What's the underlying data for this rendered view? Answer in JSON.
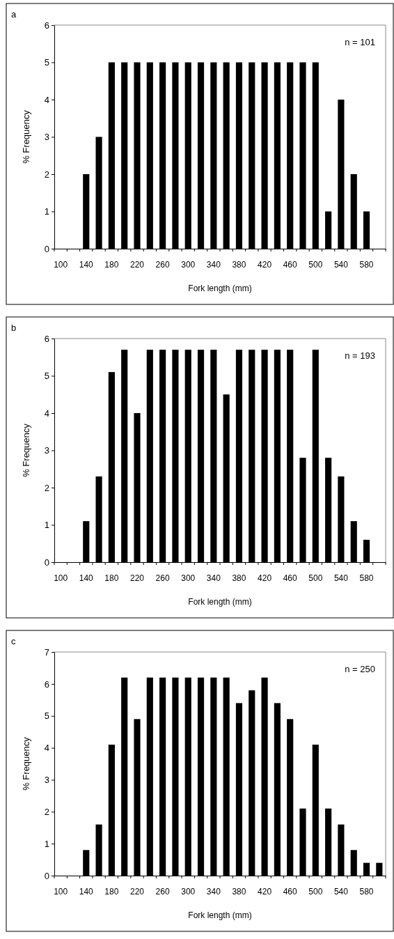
{
  "chart_data": [
    {
      "type": "bar",
      "title": "a",
      "xlabel": "Fork length (mm)",
      "ylabel": "% Frequency",
      "annotations": [
        "n = 101"
      ],
      "color": "#000000",
      "categories": [
        "100",
        null,
        "140",
        null,
        "180",
        null,
        "220",
        null,
        "260",
        null,
        "300",
        null,
        "340",
        null,
        "380",
        null,
        "420",
        null,
        "460",
        null,
        "500",
        null,
        "540",
        null,
        "580",
        null
      ],
      "values": [
        0,
        0,
        2,
        3,
        5,
        5,
        5,
        5,
        5,
        5,
        5,
        5,
        5,
        5,
        5,
        5,
        5,
        5,
        5,
        5,
        5,
        1,
        4,
        2,
        1,
        0
      ],
      "ylim": [
        0,
        6
      ],
      "yticks": [
        0,
        1,
        2,
        3,
        4,
        5,
        6
      ],
      "grid": false
    },
    {
      "type": "bar",
      "title": "b",
      "xlabel": "Fork length (mm)",
      "ylabel": "% Frequency",
      "annotations": [
        "n = 193"
      ],
      "color": "#000000",
      "categories": [
        "100",
        null,
        "140",
        null,
        "180",
        null,
        "220",
        null,
        "260",
        null,
        "300",
        null,
        "340",
        null,
        "380",
        null,
        "420",
        null,
        "460",
        null,
        "500",
        null,
        "540",
        null,
        "580",
        null
      ],
      "values": [
        0,
        0,
        1.1,
        2.3,
        5.1,
        5.7,
        4.0,
        5.7,
        5.7,
        5.7,
        5.7,
        5.7,
        5.7,
        4.5,
        5.7,
        5.7,
        5.7,
        5.7,
        5.7,
        2.8,
        5.7,
        2.8,
        2.3,
        1.1,
        0.6,
        0
      ],
      "ylim": [
        0,
        6
      ],
      "yticks": [
        0,
        1,
        2,
        3,
        4,
        5,
        6
      ],
      "grid": false
    },
    {
      "type": "bar",
      "title": "c",
      "xlabel": "Fork length (mm)",
      "ylabel": "% Frequency",
      "annotations": [
        "n = 250"
      ],
      "color": "#000000",
      "categories": [
        "100",
        null,
        "140",
        null,
        "180",
        null,
        "220",
        null,
        "260",
        null,
        "300",
        null,
        "340",
        null,
        "380",
        null,
        "420",
        null,
        "460",
        null,
        "500",
        null,
        "540",
        null,
        "580",
        null
      ],
      "values": [
        0,
        0,
        0.8,
        1.6,
        4.1,
        6.2,
        4.9,
        6.2,
        6.2,
        6.2,
        6.2,
        6.2,
        6.2,
        6.2,
        5.4,
        5.8,
        6.2,
        5.4,
        4.9,
        2.1,
        4.1,
        2.1,
        1.6,
        0.8,
        0.4,
        0.4
      ],
      "ylim": [
        0,
        7
      ],
      "yticks": [
        0,
        1,
        2,
        3,
        4,
        5,
        6,
        7
      ],
      "grid": false
    }
  ]
}
